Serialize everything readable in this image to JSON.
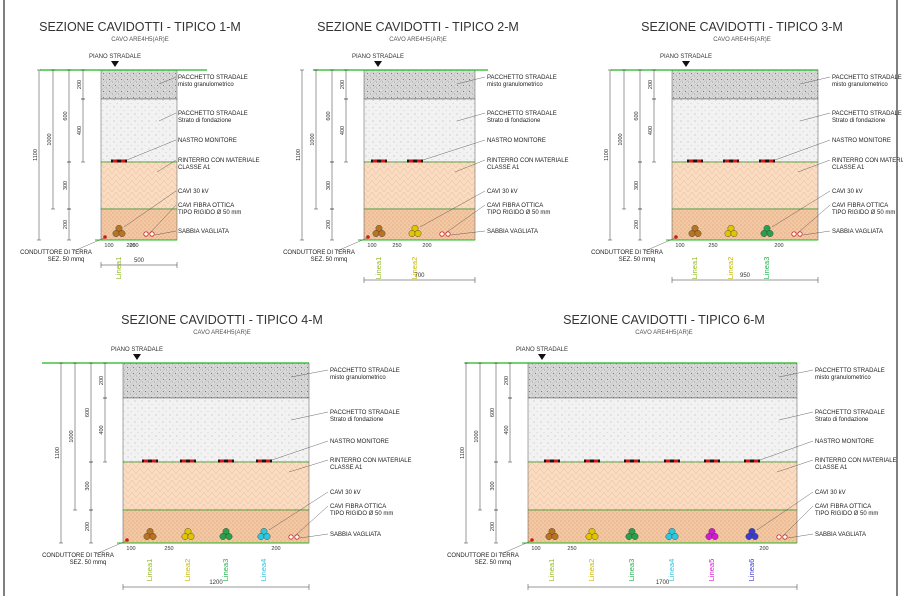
{
  "common": {
    "subtitle": "CAVO ARE4H5(AR)E",
    "piano_stradale": "PIANO STRADALE",
    "layers": {
      "pacchetto_1": "PACCHETTO STRADALE",
      "pacchetto_1b": "misto granulometrico",
      "pacchetto_2": "PACCHETTO STRADALE",
      "pacchetto_2b": "Strato di fondazione",
      "nastro": "NASTRO MONITORE",
      "rinterro": "RINTERRO CON MATERIALE",
      "rinterro_b": "CLASSE A1",
      "cavi": "CAVI 30 kV",
      "fibra": "CAVI FIBRA OTTICA",
      "fibra_b": "TIPO RIGIDO Ø 50 mm",
      "sabbia": "SABBIA VAGLIATA"
    },
    "conduttore": "CONDUTTORE DI TERRA",
    "conduttore_b": "SEZ. 50 mmq",
    "dims": {
      "d1100": "1100",
      "d1000": "1000",
      "d600": "600",
      "d400": "400",
      "d300": "300",
      "d200a": "200",
      "d200b": "200",
      "d100": "100",
      "d250": "250"
    }
  },
  "colors": {
    "ground": "#1db81d",
    "asphalt": "#d6d6d6",
    "foundation": "#efefef",
    "backfill": "#f8d6b8",
    "sand": "#f2c6a2",
    "tape_red": "#d11818",
    "tape_black": "#151515"
  },
  "sections": [
    {
      "title": "SEZIONE CAVIDOTTI - TIPICO 1-M",
      "width_label": "500",
      "line_labels": [
        "Linea1"
      ],
      "line_colors": [
        "#93b821"
      ],
      "cable_colors": [
        "#b8741f"
      ]
    },
    {
      "title": "SEZIONE CAVIDOTTI - TIPICO 2-M",
      "width_label": "700",
      "line_labels": [
        "Linea1",
        "Linea2"
      ],
      "line_colors": [
        "#93b821",
        "#c7b800"
      ],
      "cable_colors": [
        "#b8741f",
        "#e2c400"
      ]
    },
    {
      "title": "SEZIONE CAVIDOTTI - TIPICO 3-M",
      "width_label": "950",
      "line_labels": [
        "Linea1",
        "Linea2",
        "Linea3"
      ],
      "line_colors": [
        "#93b821",
        "#c7b800",
        "#22b24c"
      ],
      "cable_colors": [
        "#b8741f",
        "#e2c400",
        "#2aa04a"
      ]
    },
    {
      "title": "SEZIONE CAVIDOTTI - TIPICO 4-M",
      "width_label": "1200",
      "line_labels": [
        "Linea1",
        "Linea2",
        "Linea3",
        "Linea4"
      ],
      "line_colors": [
        "#93b821",
        "#c7b800",
        "#22b24c",
        "#33c0d8"
      ],
      "cable_colors": [
        "#b8741f",
        "#e2c400",
        "#2aa04a",
        "#2cc8e0"
      ]
    },
    {
      "title": "SEZIONE CAVIDOTTI - TIPICO 6-M",
      "width_label": "1700",
      "line_labels": [
        "Linea1",
        "Linea2",
        "Linea3",
        "Linea4",
        "Linea5",
        "Linea6"
      ],
      "line_colors": [
        "#93b821",
        "#c7b800",
        "#22b24c",
        "#33c0d8",
        "#d21ad2",
        "#3c3ccc"
      ],
      "cable_colors": [
        "#b8741f",
        "#e2c400",
        "#2aa04a",
        "#2cc8e0",
        "#d21ad2",
        "#3c3ccc"
      ]
    }
  ]
}
